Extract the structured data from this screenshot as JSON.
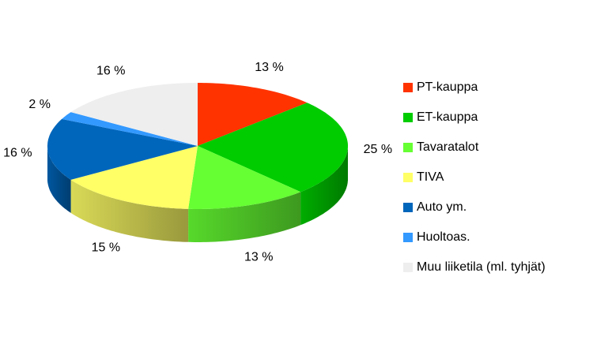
{
  "chart_data": {
    "type": "pie",
    "categories": [
      "PT-kauppa",
      "ET-kauppa",
      "Tavaratalot",
      "TIVA",
      "Auto ym.",
      "Huoltoas.",
      "Muu liiketila (ml. tyhjät)"
    ],
    "values": [
      13,
      25,
      13,
      15,
      16,
      2,
      16
    ],
    "value_labels": [
      "13 %",
      "25 %",
      "13 %",
      "15 %",
      "16 %",
      "2 %",
      "16 %"
    ],
    "colors": [
      "#ff3300",
      "#00cc00",
      "#66ff33",
      "#ffff66",
      "#0066bb",
      "#3399ff",
      "#eeeeee"
    ],
    "legend": "right"
  }
}
